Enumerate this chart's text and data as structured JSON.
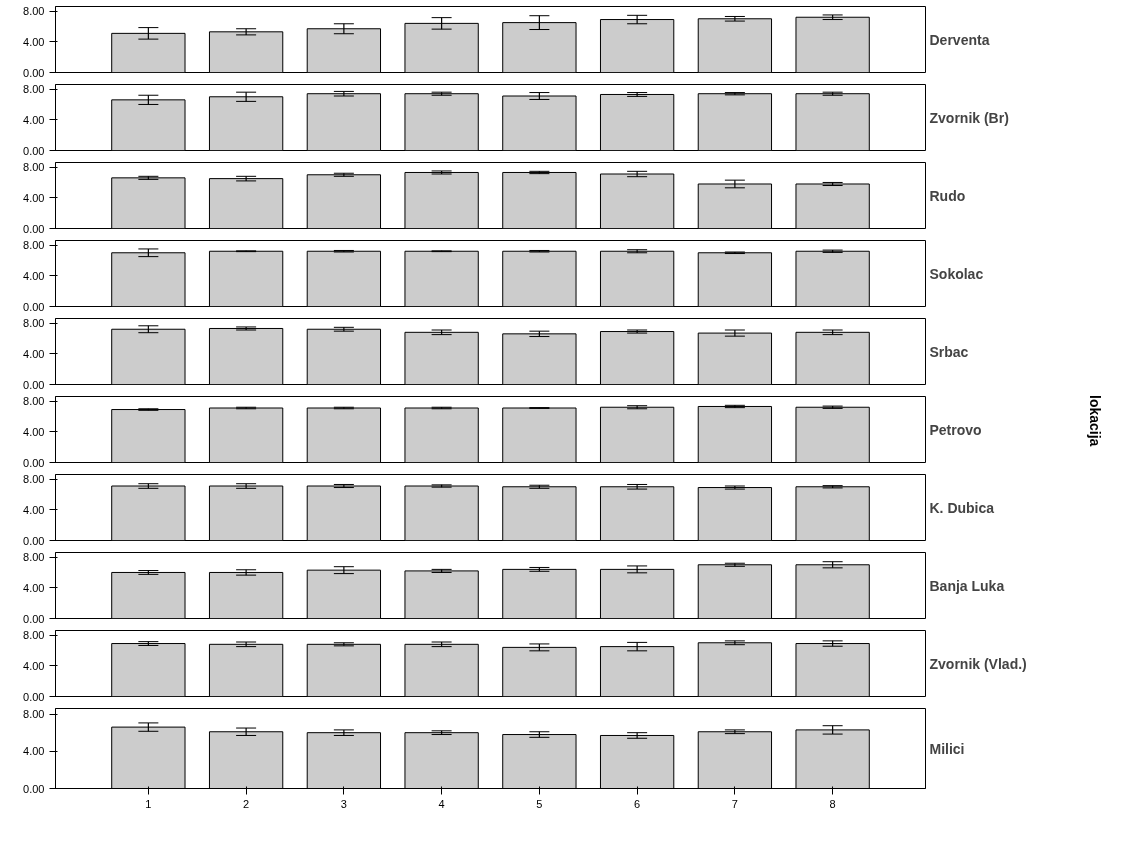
{
  "chart_data": [
    {
      "type": "bar",
      "title": "Derventa",
      "annotations": [
        "lokacija"
      ],
      "categories": [
        "1",
        "2",
        "3",
        "4",
        "5",
        "6",
        "7",
        "8"
      ],
      "color": "#cccccc",
      "values": [
        5.1,
        5.3,
        5.7,
        6.4,
        6.5,
        6.9,
        7.0,
        7.2
      ],
      "errors": [
        0.75,
        0.4,
        0.65,
        0.75,
        0.9,
        0.55,
        0.3,
        0.3
      ],
      "ylim": [
        0,
        8.6
      ],
      "yticks": [
        {
          "value": 0,
          "label": "0.00"
        },
        {
          "value": 4,
          "label": "4.00"
        },
        {
          "value": 8,
          "label": "8.00"
        }
      ],
      "tick_labels": "y"
    },
    {
      "type": "bar",
      "title": "Zvornik (Br)",
      "categories": [
        "1",
        "2",
        "3",
        "4",
        "5",
        "6",
        "7",
        "8"
      ],
      "color": "#cccccc",
      "values": [
        6.6,
        7.0,
        7.4,
        7.4,
        7.1,
        7.3,
        7.4,
        7.4
      ],
      "errors": [
        0.6,
        0.6,
        0.3,
        0.2,
        0.45,
        0.25,
        0.15,
        0.2
      ],
      "ylim": [
        0,
        8.6
      ],
      "yticks": [
        {
          "value": 0,
          "label": "0.00"
        },
        {
          "value": 4,
          "label": "4.00"
        },
        {
          "value": 8,
          "label": "8.00"
        }
      ],
      "tick_labels": "y"
    },
    {
      "type": "bar",
      "title": "Rudo",
      "categories": [
        "1",
        "2",
        "3",
        "4",
        "5",
        "6",
        "7",
        "8"
      ],
      "color": "#cccccc",
      "values": [
        6.6,
        6.5,
        7.0,
        7.3,
        7.3,
        7.1,
        5.8,
        5.8
      ],
      "errors": [
        0.2,
        0.3,
        0.2,
        0.2,
        0.15,
        0.35,
        0.5,
        0.2
      ],
      "ylim": [
        0,
        8.6
      ],
      "yticks": [
        {
          "value": 0,
          "label": "0.00"
        },
        {
          "value": 4,
          "label": "4.00"
        },
        {
          "value": 8,
          "label": "8.00"
        }
      ],
      "tick_labels": "y"
    },
    {
      "type": "bar",
      "title": "Sokolac",
      "categories": [
        "1",
        "2",
        "3",
        "4",
        "5",
        "6",
        "7",
        "8"
      ],
      "color": "#cccccc",
      "values": [
        7.0,
        7.2,
        7.2,
        7.2,
        7.2,
        7.2,
        7.0,
        7.2
      ],
      "errors": [
        0.5,
        0.05,
        0.1,
        0.05,
        0.1,
        0.2,
        0.1,
        0.15
      ],
      "ylim": [
        0,
        8.6
      ],
      "yticks": [
        {
          "value": 0,
          "label": "0.00"
        },
        {
          "value": 4,
          "label": "4.00"
        },
        {
          "value": 8,
          "label": "8.00"
        }
      ],
      "tick_labels": "y"
    },
    {
      "type": "bar",
      "title": "Srbac",
      "categories": [
        "1",
        "2",
        "3",
        "4",
        "5",
        "6",
        "7",
        "8"
      ],
      "color": "#cccccc",
      "values": [
        7.2,
        7.3,
        7.2,
        6.8,
        6.6,
        6.9,
        6.7,
        6.8
      ],
      "errors": [
        0.45,
        0.2,
        0.25,
        0.3,
        0.35,
        0.2,
        0.4,
        0.3
      ],
      "ylim": [
        0,
        8.6
      ],
      "yticks": [
        {
          "value": 0,
          "label": "0.00"
        },
        {
          "value": 4,
          "label": "4.00"
        },
        {
          "value": 8,
          "label": "8.00"
        }
      ],
      "tick_labels": "y"
    },
    {
      "type": "bar",
      "title": "Petrovo",
      "categories": [
        "1",
        "2",
        "3",
        "4",
        "5",
        "6",
        "7",
        "8"
      ],
      "color": "#cccccc",
      "values": [
        6.9,
        7.1,
        7.1,
        7.1,
        7.1,
        7.2,
        7.3,
        7.2
      ],
      "errors": [
        0.1,
        0.1,
        0.1,
        0.1,
        0.05,
        0.2,
        0.15,
        0.15
      ],
      "ylim": [
        0,
        8.6
      ],
      "yticks": [
        {
          "value": 0,
          "label": "0.00"
        },
        {
          "value": 4,
          "label": "4.00"
        },
        {
          "value": 8,
          "label": "8.00"
        }
      ],
      "tick_labels": "y"
    },
    {
      "type": "bar",
      "title": "K. Dubica",
      "categories": [
        "1",
        "2",
        "3",
        "4",
        "5",
        "6",
        "7",
        "8"
      ],
      "color": "#cccccc",
      "values": [
        7.1,
        7.1,
        7.1,
        7.1,
        7.0,
        7.0,
        6.9,
        7.0
      ],
      "errors": [
        0.3,
        0.3,
        0.2,
        0.15,
        0.2,
        0.3,
        0.2,
        0.15
      ],
      "ylim": [
        0,
        8.6
      ],
      "yticks": [
        {
          "value": 0,
          "label": "0.00"
        },
        {
          "value": 4,
          "label": "4.00"
        },
        {
          "value": 8,
          "label": "8.00"
        }
      ],
      "tick_labels": "y"
    },
    {
      "type": "bar",
      "title": "Banja Luka",
      "categories": [
        "1",
        "2",
        "3",
        "4",
        "5",
        "6",
        "7",
        "8"
      ],
      "color": "#cccccc",
      "values": [
        6.0,
        6.0,
        6.3,
        6.2,
        6.4,
        6.4,
        7.0,
        7.0
      ],
      "errors": [
        0.25,
        0.35,
        0.45,
        0.2,
        0.25,
        0.45,
        0.2,
        0.4
      ],
      "ylim": [
        0,
        8.6
      ],
      "yticks": [
        {
          "value": 0,
          "label": "0.00"
        },
        {
          "value": 4,
          "label": "4.00"
        },
        {
          "value": 8,
          "label": "8.00"
        }
      ],
      "tick_labels": "y"
    },
    {
      "type": "bar",
      "title": "Zvornik (Vlad.)",
      "categories": [
        "1",
        "2",
        "3",
        "4",
        "5",
        "6",
        "7",
        "8"
      ],
      "color": "#cccccc",
      "values": [
        6.9,
        6.8,
        6.8,
        6.8,
        6.4,
        6.5,
        7.0,
        6.9
      ],
      "errors": [
        0.25,
        0.3,
        0.2,
        0.3,
        0.45,
        0.55,
        0.25,
        0.35
      ],
      "ylim": [
        0,
        8.6
      ],
      "yticks": [
        {
          "value": 0,
          "label": "0.00"
        },
        {
          "value": 4,
          "label": "4.00"
        },
        {
          "value": 8,
          "label": "8.00"
        }
      ],
      "tick_labels": "y"
    },
    {
      "type": "bar",
      "title": "Milici",
      "categories": [
        "1",
        "2",
        "3",
        "4",
        "5",
        "6",
        "7",
        "8"
      ],
      "color": "#cccccc",
      "values": [
        6.6,
        6.1,
        6.0,
        6.0,
        5.8,
        5.7,
        6.1,
        6.3
      ],
      "errors": [
        0.45,
        0.4,
        0.3,
        0.2,
        0.3,
        0.3,
        0.2,
        0.45
      ],
      "ylim": [
        0,
        8.6
      ],
      "yticks": [
        {
          "value": 0,
          "label": "0.00"
        },
        {
          "value": 4,
          "label": "4.00"
        },
        {
          "value": 8,
          "label": "8.00"
        }
      ],
      "grid": false
    }
  ]
}
